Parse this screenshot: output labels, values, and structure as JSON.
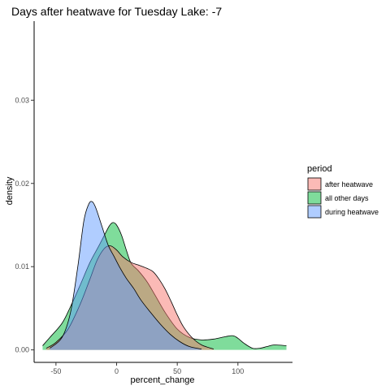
{
  "chart_data": {
    "type": "area",
    "title": "Days after heatwave for Tuesday Lake: -7",
    "xlabel": "percent_change",
    "ylabel": "density",
    "xlim": [
      -68,
      145
    ],
    "ylim": [
      -0.0015,
      0.0395
    ],
    "x_ticks": [
      -50,
      0,
      50,
      100
    ],
    "x_tick_labels": [
      "-50",
      "0",
      "50",
      "100"
    ],
    "y_ticks": [
      0.0,
      0.01,
      0.02,
      0.03
    ],
    "y_tick_labels": [
      "0.00",
      "0.01",
      "0.02",
      "0.03"
    ],
    "grid": false,
    "legend": {
      "title": "period",
      "position": "right",
      "entries": [
        "after heatwave",
        "all other days",
        "during heatwave"
      ]
    },
    "series": [
      {
        "name": "all other days",
        "color": "#00BA38",
        "points": [
          [
            -61,
            0.0005
          ],
          [
            -55,
            0.0015
          ],
          [
            -45,
            0.0032
          ],
          [
            -38,
            0.0052
          ],
          [
            -30,
            0.0078
          ],
          [
            -22,
            0.0105
          ],
          [
            -15,
            0.0124
          ],
          [
            -10,
            0.0138
          ],
          [
            -6,
            0.0149
          ],
          [
            -3,
            0.0153
          ],
          [
            0,
            0.015
          ],
          [
            4,
            0.0138
          ],
          [
            8,
            0.012
          ],
          [
            12,
            0.0104
          ],
          [
            18,
            0.0095
          ],
          [
            25,
            0.0082
          ],
          [
            32,
            0.0065
          ],
          [
            40,
            0.0045
          ],
          [
            50,
            0.0025
          ],
          [
            60,
            0.0015
          ],
          [
            70,
            0.0012
          ],
          [
            80,
            0.0013
          ],
          [
            90,
            0.0016
          ],
          [
            96,
            0.0017
          ],
          [
            100,
            0.0014
          ],
          [
            105,
            0.0008
          ],
          [
            112,
            0.0002
          ],
          [
            118,
            0.0002
          ],
          [
            124,
            0.0004
          ],
          [
            130,
            0.0006
          ],
          [
            140,
            0.0005
          ]
        ]
      },
      {
        "name": "after heatwave",
        "color": "#F8766D",
        "points": [
          [
            -58,
            0.0002
          ],
          [
            -50,
            0.0009
          ],
          [
            -40,
            0.0025
          ],
          [
            -30,
            0.0055
          ],
          [
            -22,
            0.0085
          ],
          [
            -16,
            0.0108
          ],
          [
            -10,
            0.0122
          ],
          [
            -5,
            0.0125
          ],
          [
            0,
            0.012
          ],
          [
            5,
            0.0112
          ],
          [
            12,
            0.0105
          ],
          [
            18,
            0.0102
          ],
          [
            25,
            0.0098
          ],
          [
            30,
            0.0094
          ],
          [
            35,
            0.0085
          ],
          [
            40,
            0.0073
          ],
          [
            45,
            0.0058
          ],
          [
            50,
            0.0042
          ],
          [
            55,
            0.0028
          ],
          [
            62,
            0.0015
          ],
          [
            70,
            0.0006
          ],
          [
            80,
            0.0001
          ]
        ]
      },
      {
        "name": "during heatwave",
        "color": "#619CFF",
        "points": [
          [
            -55,
            0.0002
          ],
          [
            -45,
            0.0015
          ],
          [
            -38,
            0.0045
          ],
          [
            -32,
            0.01
          ],
          [
            -27,
            0.0155
          ],
          [
            -23,
            0.0175
          ],
          [
            -20,
            0.0178
          ],
          [
            -17,
            0.017
          ],
          [
            -12,
            0.0148
          ],
          [
            -7,
            0.0126
          ],
          [
            -2,
            0.0112
          ],
          [
            3,
            0.0098
          ],
          [
            8,
            0.0086
          ],
          [
            14,
            0.0074
          ],
          [
            20,
            0.006
          ],
          [
            28,
            0.0045
          ],
          [
            36,
            0.0031
          ],
          [
            44,
            0.0019
          ],
          [
            52,
            0.001
          ],
          [
            60,
            0.0004
          ],
          [
            70,
            0.0001
          ]
        ]
      }
    ]
  }
}
